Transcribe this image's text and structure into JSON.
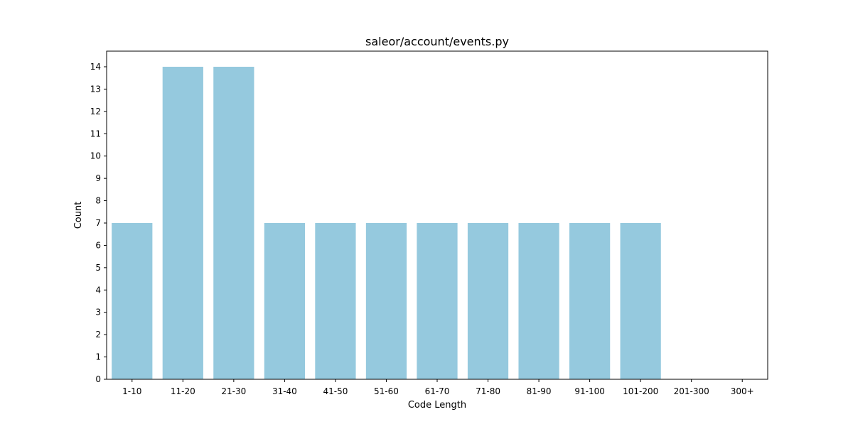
{
  "chart_data": {
    "type": "bar",
    "title": "saleor/account/events.py",
    "xlabel": "Code Length",
    "ylabel": "Count",
    "categories": [
      "1-10",
      "11-20",
      "21-30",
      "31-40",
      "41-50",
      "51-60",
      "61-70",
      "71-80",
      "81-90",
      "91-100",
      "101-200",
      "201-300",
      "300+"
    ],
    "values": [
      7,
      14,
      14,
      7,
      7,
      7,
      7,
      7,
      7,
      7,
      7,
      0,
      0
    ],
    "ylim": [
      0,
      14.7
    ],
    "yticks": [
      0,
      1,
      2,
      3,
      4,
      5,
      6,
      7,
      8,
      9,
      10,
      11,
      12,
      13,
      14
    ],
    "grid": false,
    "legend": "none",
    "colors": {
      "bar": "#95c9de",
      "axis": "#000000",
      "background": "#ffffff"
    }
  }
}
